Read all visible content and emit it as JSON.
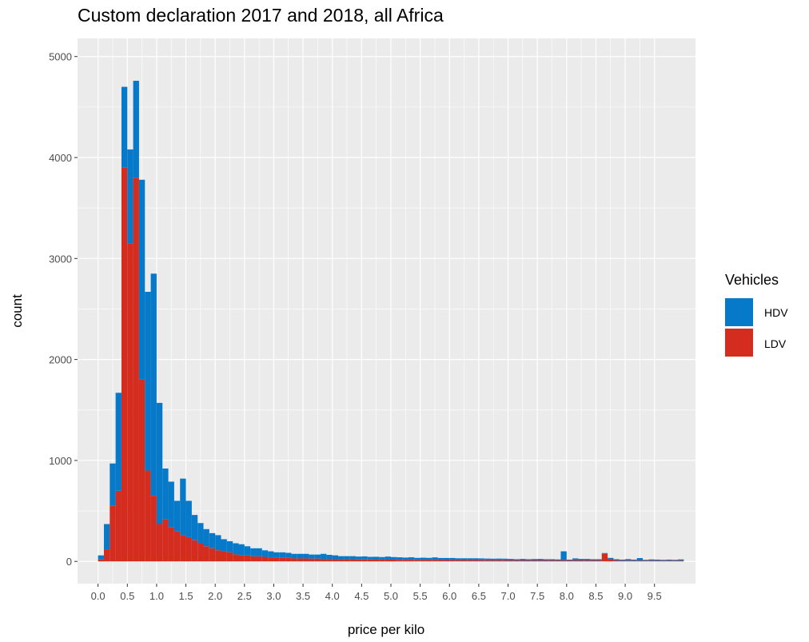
{
  "chart_data": {
    "type": "bar",
    "stacked": true,
    "title": "Custom declaration 2017 and 2018, all Africa",
    "xlabel": "price per kilo",
    "ylabel": "count",
    "xlim": [
      -0.35,
      10.2
    ],
    "ylim": [
      -220,
      5180
    ],
    "bin_width": 0.1,
    "x_ticks": [
      0.0,
      0.5,
      1.0,
      1.5,
      2.0,
      2.5,
      3.0,
      3.5,
      4.0,
      4.5,
      5.0,
      5.5,
      6.0,
      6.5,
      7.0,
      7.5,
      8.0,
      8.5,
      9.0,
      9.5
    ],
    "x_tick_labels": [
      "0.0",
      "0.5",
      "1.0",
      "1.5",
      "2.0",
      "2.5",
      "3.0",
      "3.5",
      "4.0",
      "4.5",
      "5.0",
      "5.5",
      "6.0",
      "6.5",
      "7.0",
      "7.5",
      "8.0",
      "8.5",
      "9.0",
      "9.5"
    ],
    "y_ticks": [
      0,
      1000,
      2000,
      3000,
      4000,
      5000
    ],
    "y_tick_labels": [
      "0",
      "1000",
      "2000",
      "3000",
      "4000",
      "5000"
    ],
    "grid": true,
    "legend": {
      "title": "Vehicles",
      "position": "right"
    },
    "colors": {
      "HDV": "#0779c9",
      "LDV": "#d42c1e",
      "panel": "#ebebeb",
      "grid": "#ffffff"
    },
    "bin_starts": [
      0.0,
      0.1,
      0.2,
      0.3,
      0.4,
      0.5,
      0.6,
      0.7,
      0.8,
      0.9,
      1.0,
      1.1,
      1.2,
      1.3,
      1.4,
      1.5,
      1.6,
      1.7,
      1.8,
      1.9,
      2.0,
      2.1,
      2.2,
      2.3,
      2.4,
      2.5,
      2.6,
      2.7,
      2.8,
      2.9,
      3.0,
      3.1,
      3.2,
      3.3,
      3.4,
      3.5,
      3.6,
      3.7,
      3.8,
      3.9,
      4.0,
      4.1,
      4.2,
      4.3,
      4.4,
      4.5,
      4.6,
      4.7,
      4.8,
      4.9,
      5.0,
      5.1,
      5.2,
      5.3,
      5.4,
      5.5,
      5.6,
      5.7,
      5.8,
      5.9,
      6.0,
      6.1,
      6.2,
      6.3,
      6.4,
      6.5,
      6.6,
      6.7,
      6.8,
      6.9,
      7.0,
      7.1,
      7.2,
      7.3,
      7.4,
      7.5,
      7.6,
      7.7,
      7.8,
      7.9,
      8.0,
      8.1,
      8.2,
      8.3,
      8.4,
      8.5,
      8.6,
      8.7,
      8.8,
      8.9,
      9.0,
      9.1,
      9.2,
      9.3,
      9.4,
      9.5,
      9.6,
      9.7,
      9.8,
      9.9
    ],
    "series": [
      {
        "name": "LDV",
        "values": [
          20,
          120,
          550,
          700,
          3900,
          3150,
          3800,
          1800,
          900,
          650,
          370,
          420,
          340,
          300,
          260,
          240,
          210,
          180,
          150,
          130,
          110,
          100,
          90,
          70,
          60,
          60,
          50,
          50,
          45,
          40,
          40,
          35,
          35,
          30,
          30,
          30,
          28,
          28,
          25,
          25,
          25,
          22,
          22,
          22,
          20,
          20,
          20,
          18,
          18,
          18,
          18,
          16,
          16,
          16,
          15,
          15,
          15,
          15,
          14,
          14,
          14,
          13,
          13,
          13,
          13,
          12,
          12,
          12,
          12,
          12,
          10,
          10,
          10,
          10,
          10,
          10,
          10,
          10,
          10,
          10,
          10,
          10,
          10,
          10,
          10,
          10,
          75,
          25,
          10,
          8,
          8,
          8,
          8,
          8,
          8,
          8,
          8,
          8,
          8,
          8
        ]
      },
      {
        "name": "HDV",
        "values": [
          40,
          250,
          420,
          970,
          800,
          930,
          960,
          1980,
          1770,
          2200,
          1200,
          500,
          450,
          300,
          560,
          360,
          250,
          200,
          170,
          150,
          150,
          120,
          110,
          110,
          110,
          90,
          80,
          80,
          65,
          60,
          50,
          55,
          50,
          45,
          45,
          45,
          40,
          40,
          50,
          40,
          35,
          30,
          30,
          30,
          28,
          30,
          25,
          28,
          25,
          30,
          25,
          25,
          22,
          25,
          20,
          22,
          20,
          25,
          20,
          20,
          20,
          18,
          18,
          18,
          18,
          18,
          16,
          15,
          16,
          15,
          15,
          12,
          15,
          12,
          14,
          15,
          12,
          12,
          10,
          90,
          8,
          20,
          15,
          15,
          12,
          12,
          8,
          10,
          12,
          10,
          15,
          10,
          25,
          8,
          12,
          10,
          8,
          10,
          8,
          12
        ]
      }
    ]
  }
}
